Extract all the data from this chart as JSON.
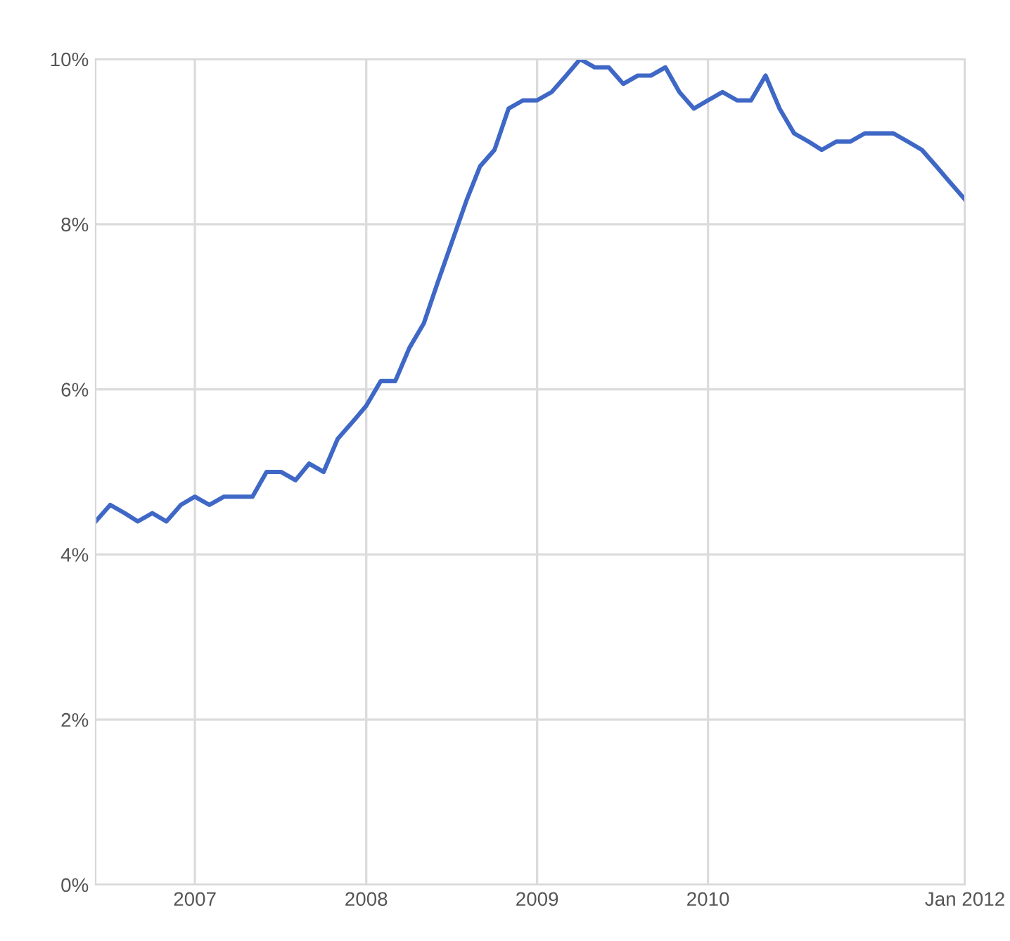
{
  "chart_data": {
    "type": "line",
    "x": [
      "2006-12",
      "2007-01",
      "2007-02",
      "2007-03",
      "2007-04",
      "2007-05",
      "2007-06",
      "2007-07",
      "2007-08",
      "2007-09",
      "2007-10",
      "2007-11",
      "2007-12",
      "2008-01",
      "2008-02",
      "2008-03",
      "2008-04",
      "2008-05",
      "2008-06",
      "2008-07",
      "2008-08",
      "2008-09",
      "2008-10",
      "2008-11",
      "2008-12",
      "2009-01",
      "2009-02",
      "2009-03",
      "2009-04",
      "2009-05",
      "2009-06",
      "2009-07",
      "2009-08",
      "2009-09",
      "2009-10",
      "2009-11",
      "2009-12",
      "2010-01",
      "2010-02",
      "2010-03",
      "2010-04",
      "2010-05",
      "2010-06",
      "2010-07",
      "2010-08",
      "2010-09",
      "2010-10",
      "2010-11",
      "2010-12",
      "2011-01",
      "2011-02",
      "2011-03",
      "2011-04",
      "2011-05",
      "2011-06",
      "2011-07",
      "2011-08",
      "2011-09",
      "2011-10",
      "2011-11",
      "2011-12",
      "2012-01"
    ],
    "series": [
      {
        "color": "#3f68c6",
        "values": [
          4.4,
          4.6,
          4.5,
          4.4,
          4.5,
          4.4,
          4.6,
          4.7,
          4.6,
          4.7,
          4.7,
          4.7,
          5.0,
          5.0,
          4.9,
          5.1,
          5.0,
          5.4,
          5.6,
          5.8,
          6.1,
          6.1,
          6.5,
          6.8,
          7.3,
          7.8,
          8.3,
          8.7,
          8.9,
          9.4,
          9.5,
          9.5,
          9.6,
          9.8,
          10.0,
          9.9,
          9.9,
          9.7,
          9.8,
          9.8,
          9.9,
          9.6,
          9.4,
          9.5,
          9.6,
          9.5,
          9.5,
          9.8,
          9.4,
          9.1,
          9.0,
          8.9,
          9.0,
          9.0,
          9.1,
          9.1,
          9.1,
          9.0,
          8.9,
          8.7,
          8.5,
          8.3
        ]
      }
    ],
    "xlim": [
      "2006-12",
      "2012-01"
    ],
    "xticks": [
      {
        "value": "2007-07",
        "label": "2007"
      },
      {
        "value": "2008-07",
        "label": "2008"
      },
      {
        "value": "2009-07",
        "label": "2009"
      },
      {
        "value": "2010-07",
        "label": "2010"
      },
      {
        "value": "2012-01",
        "label": "Jan 2012"
      }
    ],
    "ylim": [
      0,
      10
    ],
    "yticks": [
      {
        "value": 0,
        "label": "0%"
      },
      {
        "value": 2,
        "label": "2%"
      },
      {
        "value": 4,
        "label": "4%"
      },
      {
        "value": 6,
        "label": "6%"
      },
      {
        "value": 8,
        "label": "8%"
      },
      {
        "value": 10,
        "label": "10%"
      }
    ],
    "grid": true,
    "legend": false,
    "marker": "none",
    "line_style": "solid"
  }
}
